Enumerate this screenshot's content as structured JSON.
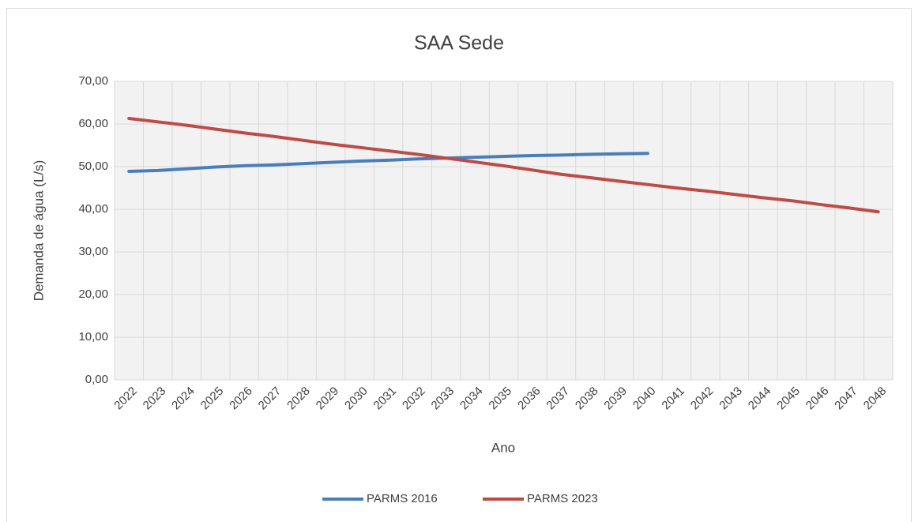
{
  "chart_data": {
    "type": "line",
    "title": "SAA Sede",
    "x_label": "Ano",
    "y_label": "Demanda de água (L/s)",
    "categories": [
      "2022",
      "2023",
      "2024",
      "2025",
      "2026",
      "2027",
      "2028",
      "2029",
      "2030",
      "2031",
      "2032",
      "2033",
      "2034",
      "2035",
      "2036",
      "2037",
      "2038",
      "2039",
      "2040",
      "2041",
      "2042",
      "2043",
      "2044",
      "2045",
      "2046",
      "2047",
      "2048"
    ],
    "series": [
      {
        "name": "PARMS 2016",
        "color": "#4a7ebb",
        "values": [
          48.9,
          49.1,
          49.5,
          49.9,
          50.2,
          50.4,
          50.7,
          51.0,
          51.3,
          51.5,
          51.8,
          52.0,
          52.2,
          52.4,
          52.6,
          52.7,
          52.9,
          53.0,
          53.1,
          null,
          null,
          null,
          null,
          null,
          null,
          null,
          null
        ]
      },
      {
        "name": "PARMS 2023",
        "color": "#be4b48",
        "values": [
          61.3,
          60.5,
          59.7,
          58.8,
          57.9,
          57.1,
          56.2,
          55.3,
          54.5,
          53.7,
          52.9,
          52.0,
          51.1,
          50.2,
          49.2,
          48.2,
          47.4,
          46.6,
          45.8,
          45.0,
          44.3,
          43.5,
          42.7,
          42.0,
          41.1,
          40.3,
          39.4
        ]
      }
    ],
    "ylim": [
      0,
      70
    ],
    "yticks": [
      {
        "value": 0,
        "label": "0,00"
      },
      {
        "value": 10,
        "label": "10,00"
      },
      {
        "value": 20,
        "label": "20,00"
      },
      {
        "value": 30,
        "label": "30,00"
      },
      {
        "value": 40,
        "label": "40,00"
      },
      {
        "value": 50,
        "label": "50,00"
      },
      {
        "value": 60,
        "label": "60,00"
      },
      {
        "value": 70,
        "label": "70,00"
      }
    ],
    "grid": true,
    "legend": "bottom"
  }
}
